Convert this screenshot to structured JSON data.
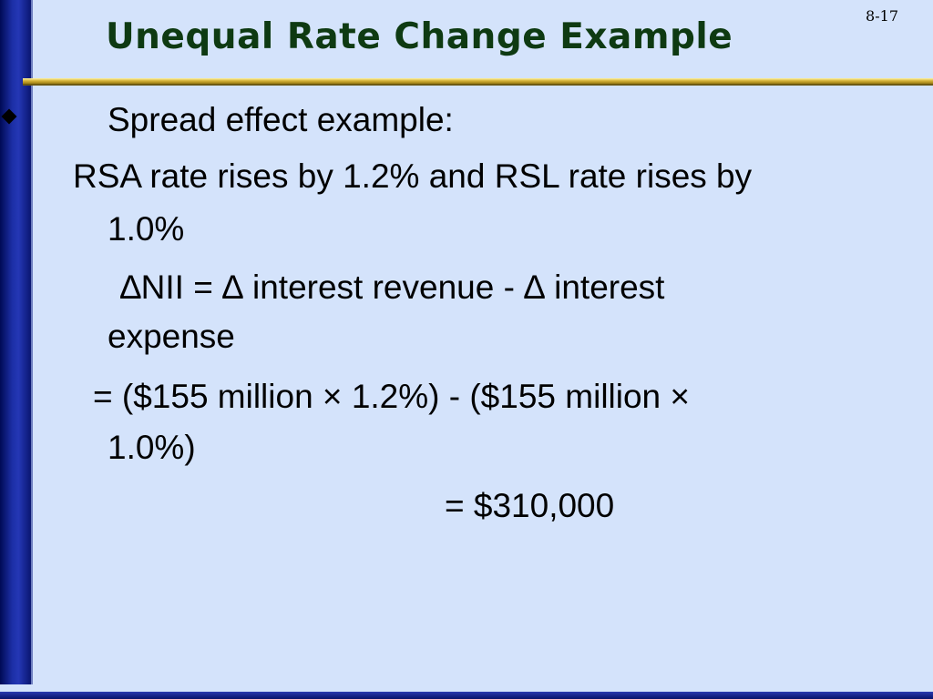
{
  "slide": {
    "page_number": "8-17",
    "title": "Unequal Rate Change Example",
    "bullet_text": "Spread effect example:",
    "para1_line1": "RSA rate rises by 1.2% and RSL rate rises by",
    "para1_line2": "1.0%",
    "para2_line1": "∆NII = ∆ interest revenue - ∆ interest",
    "para2_line2": "expense",
    "para3_line1": "= ($155 million × 1.2%) - ($155 million ×",
    "para3_line2": "1.0%)",
    "result": "= $310,000"
  },
  "colors": {
    "background": "#d4e3fb",
    "title": "#0e3a12",
    "accent_bar": "#1c2fa6",
    "rule": "#d6b43a"
  }
}
